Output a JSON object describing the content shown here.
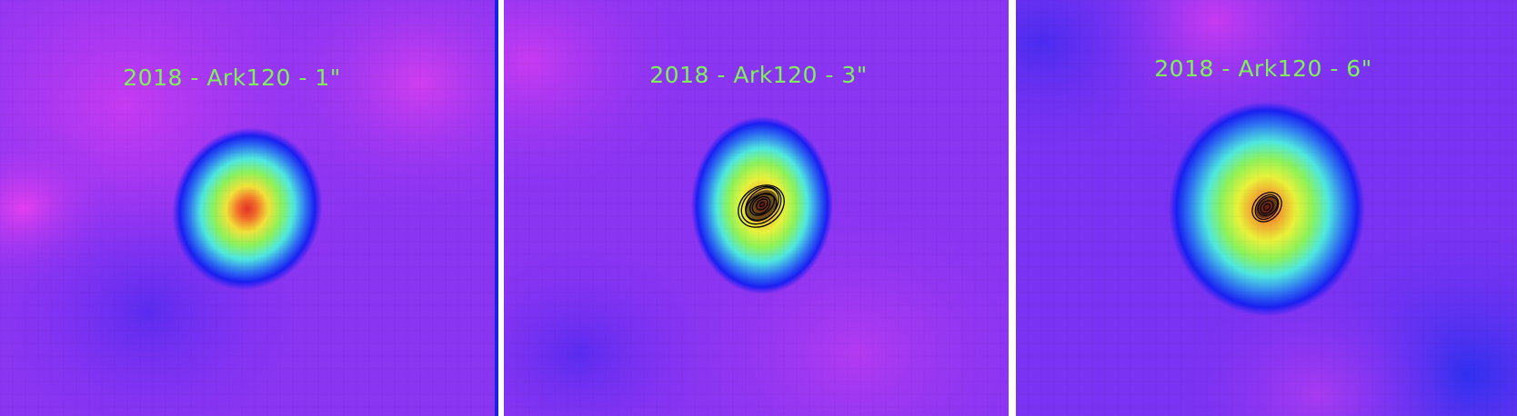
{
  "panels": [
    {
      "label": "2018 - Ark120 - 1\"",
      "contours": false
    },
    {
      "label": "2018 - Ark120 - 3\"",
      "contours": true
    },
    {
      "label": "2018 - Ark120 - 6\"",
      "contours": true
    }
  ],
  "colors": {
    "label_text": "#7ef25a",
    "background_violet": "#8a35f2",
    "contour": "#000000",
    "divider_blue": "#1b22e6",
    "divider_white": "#ffffff"
  },
  "colormap": "rainbow"
}
